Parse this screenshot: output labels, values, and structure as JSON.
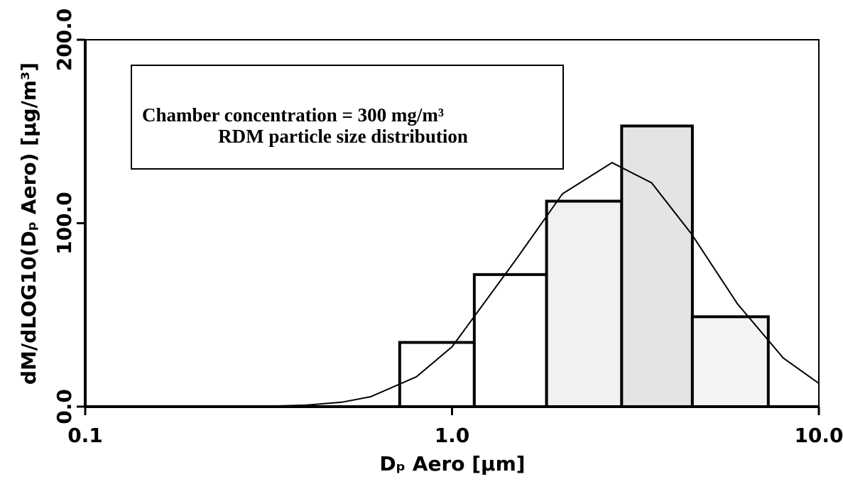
{
  "chart_data": {
    "type": "histogram",
    "annotations": [
      "Chamber concentration = 300 mg/m³",
      "RDM particle size distribution"
    ],
    "xlabel": "Dₚ Aero [µm]",
    "ylabel": "dM/dLOG10(Dₚ Aero) [µg/m³]",
    "xscale": "log",
    "xlim": [
      0.1,
      10
    ],
    "xticks": [
      0.1,
      {
        "value": 1,
        "label": "1.0"
      },
      {
        "value": 10,
        "label": "10.0"
      }
    ],
    "ylim": [
      0,
      200
    ],
    "yticks": [
      {
        "value": 0,
        "label": "0.0"
      },
      {
        "value": 100,
        "label": "100.0"
      },
      {
        "value": 200,
        "label": "200.0"
      }
    ],
    "bins": [
      0.72,
      1.15,
      1.81,
      2.9,
      4.52,
      7.28
    ],
    "counts": [
      35,
      72,
      112,
      153,
      49
    ],
    "colors": [
      "#ffffff",
      "#ffffff",
      "#f1f1f1",
      "#e4e4e4",
      "#f3f3f3"
    ],
    "curve": {
      "color": "#000000",
      "x": [
        0.3,
        0.4,
        0.5,
        0.6,
        0.8,
        1.0,
        1.5,
        2.0,
        2.73,
        3.5,
        4.5,
        6,
        8,
        10
      ],
      "values": [
        0.1,
        0.8,
        2.4,
        5.4,
        16.3,
        32.6,
        80.7,
        116,
        133,
        122,
        94,
        56,
        26.5,
        12.7
      ]
    }
  }
}
